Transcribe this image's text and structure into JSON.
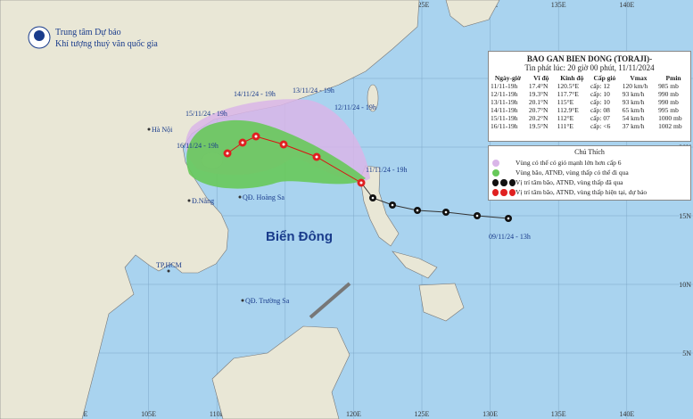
{
  "header": {
    "line1": "Trung tâm Dự báo",
    "line2": "Khí tượng thuỷ văn quốc gia"
  },
  "info": {
    "title": "BAO GAN BIEN DONG (TORAJI)-",
    "subtitle": "Tin phát lúc: 20 giờ 00 phút, 11/11/2024",
    "table": {
      "headers": [
        "Ngày-giờ",
        "Vĩ độ",
        "Kinh độ",
        "Cấp gió",
        "Vmax",
        "Pmin"
      ],
      "rows": [
        [
          "11/11-19h",
          "17.4°N",
          "120.5°E",
          "cấp: 12",
          "120 km/h",
          "985 mb"
        ],
        [
          "12/11-19h",
          "19.3°N",
          "117.7°E",
          "cấp: 10",
          "93 km/h",
          "990 mb"
        ],
        [
          "13/11-19h",
          "20.1°N",
          "115°E",
          "cấp: 10",
          "93 km/h",
          "990 mb"
        ],
        [
          "14/11-19h",
          "20.7°N",
          "112.9°E",
          "cấp: 08",
          "65 km/h",
          "995 mb"
        ],
        [
          "15/11-19h",
          "20.2°N",
          "112°E",
          "cấp: 07",
          "54 km/h",
          "1000 mb"
        ],
        [
          "16/11-19h",
          "19.5°N",
          "111°E",
          "cấp: <6",
          "37 km/h",
          "1002 mb"
        ]
      ]
    }
  },
  "legend": {
    "title": "Chú Thích",
    "items": [
      "Vùng có thể có gió mạnh lớn hơn cấp 6",
      "Vùng bão, ATNĐ, vùng thấp có thể đi qua",
      "Vị trí tâm bão, ATNĐ, vùng thấp đã qua",
      "Vị trí tâm bão, ATNĐ, vùng thấp hiện tại, dự báo"
    ]
  },
  "map": {
    "sea": "Biển Đông",
    "places": [
      "Hà Nội",
      "Đ.Nẵng",
      "QĐ. Hoàng Sa",
      "TP.HCM",
      "QĐ. Trường Sa"
    ],
    "track_labels": [
      "11/11/24 - 19h",
      "12/11/24 - 19h",
      "13/11/24 - 19h",
      "14/11/24 - 19h",
      "15/11/24 - 19h",
      "16/11/24 - 19h",
      "09/11/24 - 13h"
    ],
    "lon_labels": [
      "100E",
      "105E",
      "110E",
      "115E",
      "120E",
      "125E",
      "130E",
      "135E",
      "140E"
    ],
    "lat_labels": [
      "25N",
      "20N",
      "15N",
      "10N",
      "5N"
    ]
  }
}
